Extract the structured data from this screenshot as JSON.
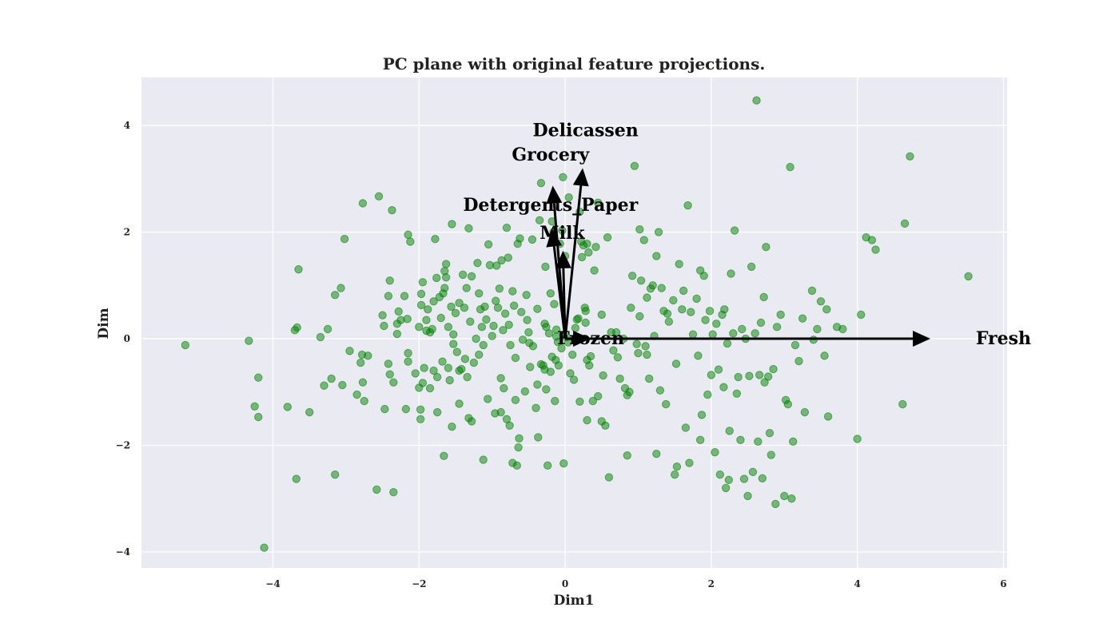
{
  "chart_data": {
    "type": "scatter",
    "title": "PC plane with original feature projections.",
    "xlabel": "Dim1",
    "ylabel": "Dim",
    "xlim": [
      -5.8,
      6.05
    ],
    "ylim": [
      -4.3,
      4.9
    ],
    "xticks": [
      -4,
      -2,
      0,
      2,
      4,
      6
    ],
    "yticks": [
      -4,
      -2,
      0,
      2,
      4
    ],
    "xtick_labels": [
      "−4",
      "−2",
      "0",
      "2",
      "4",
      "6"
    ],
    "ytick_labels": [
      "−4",
      "−2",
      "0",
      "2",
      "4"
    ],
    "grid": true,
    "colors": {
      "background": "#eaeaf2",
      "grid": "#ffffff",
      "points": "#008000",
      "arrows": "#000000"
    },
    "vectors": [
      {
        "name": "Fresh",
        "x": 5.0,
        "y": 0.0,
        "label_x": 6.0,
        "label_y": 0.0
      },
      {
        "name": "Frozen",
        "x": 0.35,
        "y": 0.0,
        "label_x": 0.35,
        "label_y": 0.0
      },
      {
        "name": "Milk",
        "x": -0.03,
        "y": 1.65,
        "label_x": -0.04,
        "label_y": 1.98
      },
      {
        "name": "Detergents_Paper",
        "x": -0.18,
        "y": 2.06,
        "label_x": -0.2,
        "label_y": 2.5
      },
      {
        "name": "Grocery",
        "x": -0.17,
        "y": 2.87,
        "label_x": -0.2,
        "label_y": 3.45
      },
      {
        "name": "Delicassen",
        "x": 0.24,
        "y": 3.2,
        "label_x": 0.28,
        "label_y": 3.9
      }
    ],
    "points": [
      [
        -5.2,
        -0.12
      ],
      [
        -4.33,
        -0.04
      ],
      [
        -4.2,
        -0.73
      ],
      [
        -4.25,
        -1.27
      ],
      [
        -4.2,
        -1.47
      ],
      [
        -4.12,
        -3.92
      ],
      [
        -3.8,
        -1.28
      ],
      [
        -3.7,
        0.16
      ],
      [
        -3.67,
        0.21
      ],
      [
        -3.65,
        1.3
      ],
      [
        -3.68,
        -2.63
      ],
      [
        -3.5,
        -1.38
      ],
      [
        -3.35,
        0.03
      ],
      [
        -3.3,
        -0.88
      ],
      [
        -3.25,
        0.18
      ],
      [
        -3.2,
        -0.75
      ],
      [
        -3.15,
        0.82
      ],
      [
        -3.15,
        -2.55
      ],
      [
        -3.07,
        0.95
      ],
      [
        -3.05,
        -0.87
      ],
      [
        -3.02,
        1.87
      ],
      [
        -2.95,
        -0.23
      ],
      [
        -2.85,
        -1.05
      ],
      [
        -2.8,
        -0.45
      ],
      [
        -2.78,
        -0.3
      ],
      [
        -2.77,
        2.54
      ],
      [
        -2.77,
        -0.82
      ],
      [
        -2.75,
        -1.17
      ],
      [
        -2.7,
        -0.32
      ],
      [
        -2.58,
        -2.83
      ],
      [
        -2.55,
        2.67
      ],
      [
        -2.5,
        0.44
      ],
      [
        -2.48,
        0.24
      ],
      [
        -2.47,
        -1.32
      ],
      [
        -2.42,
        -0.47
      ],
      [
        -2.42,
        0.8
      ],
      [
        -2.4,
        1.09
      ],
      [
        -2.4,
        -0.67
      ],
      [
        -2.37,
        2.41
      ],
      [
        -2.35,
        -2.88
      ],
      [
        -2.35,
        -0.82
      ],
      [
        -2.3,
        0.28
      ],
      [
        -2.3,
        0.09
      ],
      [
        -2.28,
        0.51
      ],
      [
        -2.25,
        0.35
      ],
      [
        -2.2,
        0.8
      ],
      [
        -2.18,
        -1.32
      ],
      [
        -2.16,
        0.37
      ],
      [
        -2.15,
        -0.43
      ],
      [
        -2.15,
        -0.27
      ],
      [
        -2.15,
        1.95
      ],
      [
        -2.12,
        1.82
      ],
      [
        -2.05,
        -0.65
      ],
      [
        -2.0,
        0.22
      ],
      [
        -2.0,
        -0.92
      ],
      [
        -1.98,
        -1.33
      ],
      [
        -1.98,
        -1.51
      ],
      [
        -1.97,
        0.63
      ],
      [
        -1.97,
        0.84
      ],
      [
        -1.95,
        -0.83
      ],
      [
        -1.95,
        1.06
      ],
      [
        -1.93,
        -0.55
      ],
      [
        -1.9,
        0.35
      ],
      [
        -1.9,
        0.15
      ],
      [
        -1.88,
        0.55
      ],
      [
        -1.85,
        0.12
      ],
      [
        -1.85,
        -0.93
      ],
      [
        -1.82,
        0.18
      ],
      [
        -1.8,
        -0.6
      ],
      [
        -1.8,
        0.7
      ],
      [
        -1.78,
        1.87
      ],
      [
        -1.76,
        1.14
      ],
      [
        -1.75,
        -1.38
      ],
      [
        -1.75,
        -0.72
      ],
      [
        -1.72,
        0.78
      ],
      [
        -1.7,
        0.39
      ],
      [
        -1.68,
        -0.43
      ],
      [
        -1.67,
        0.85
      ],
      [
        -1.66,
        -2.2
      ],
      [
        -1.65,
        0.95
      ],
      [
        -1.65,
        1.27
      ],
      [
        -1.63,
        1.15
      ],
      [
        -1.63,
        1.4
      ],
      [
        -1.6,
        0.22
      ],
      [
        -1.6,
        -0.55
      ],
      [
        -1.58,
        -0.78
      ],
      [
        -1.56,
        0.6
      ],
      [
        -1.55,
        2.15
      ],
      [
        -1.55,
        -1.65
      ],
      [
        -1.53,
        0.08
      ],
      [
        -1.53,
        -0.1
      ],
      [
        -1.5,
        0.48
      ],
      [
        -1.48,
        -0.25
      ],
      [
        -1.45,
        -1.22
      ],
      [
        -1.45,
        -0.6
      ],
      [
        -1.45,
        0.67
      ],
      [
        -1.42,
        -0.57
      ],
      [
        -1.4,
        1.2
      ],
      [
        -1.38,
        0.58
      ],
      [
        -1.37,
        -0.38
      ],
      [
        -1.35,
        0.95
      ],
      [
        -1.34,
        -0.72
      ],
      [
        -1.32,
        2.07
      ],
      [
        -1.32,
        -1.49
      ],
      [
        -1.3,
        0.32
      ],
      [
        -1.28,
        1.17
      ],
      [
        -1.28,
        -1.55
      ],
      [
        -1.25,
        -0.45
      ],
      [
        -1.22,
        0.0
      ],
      [
        -1.2,
        1.42
      ],
      [
        -1.18,
        0.85
      ],
      [
        -1.18,
        -0.3
      ],
      [
        -1.16,
        0.55
      ],
      [
        -1.14,
        0.22
      ],
      [
        -1.12,
        -0.12
      ],
      [
        -1.12,
        -2.27
      ],
      [
        -1.1,
        0.6
      ],
      [
        -1.08,
        0.36
      ],
      [
        -1.06,
        -1.13
      ],
      [
        -1.05,
        1.77
      ],
      [
        -1.03,
        1.38
      ],
      [
        -1.0,
        0.05
      ],
      [
        -0.98,
        0.24
      ],
      [
        -0.96,
        -1.4
      ],
      [
        -0.95,
        0.71
      ],
      [
        -0.94,
        1.37
      ],
      [
        -0.92,
        0.58
      ],
      [
        -0.9,
        0.94
      ],
      [
        -0.88,
        -0.74
      ],
      [
        -0.88,
        -1.38
      ],
      [
        -0.87,
        1.47
      ],
      [
        -0.85,
        0.16
      ],
      [
        -0.84,
        -0.93
      ],
      [
        -0.82,
        0.47
      ],
      [
        -0.8,
        -1.51
      ],
      [
        -0.8,
        2.08
      ],
      [
        -0.78,
        1.52
      ],
      [
        -0.77,
        0.26
      ],
      [
        -0.76,
        -1.63
      ],
      [
        -0.75,
        -0.12
      ],
      [
        -0.72,
        -2.33
      ],
      [
        -0.72,
        0.89
      ],
      [
        -0.7,
        0.62
      ],
      [
        -0.68,
        -0.36
      ],
      [
        -0.68,
        -1.15
      ],
      [
        -0.66,
        -2.38
      ],
      [
        -0.65,
        1.78
      ],
      [
        -0.64,
        -2.04
      ],
      [
        -0.63,
        -1.87
      ],
      [
        -0.62,
        1.88
      ],
      [
        -0.6,
        0.5
      ],
      [
        -0.58,
        -0.02
      ],
      [
        -0.55,
        -0.99
      ],
      [
        -0.53,
        0.82
      ],
      [
        -0.52,
        0.35
      ],
      [
        -0.5,
        0.12
      ],
      [
        -0.49,
        -0.08
      ],
      [
        -0.48,
        -0.53
      ],
      [
        -0.45,
        1.86
      ],
      [
        -0.44,
        -0.14
      ],
      [
        -0.4,
        -1.3
      ],
      [
        -0.38,
        -0.86
      ],
      [
        -0.38,
        0.56
      ],
      [
        -0.37,
        -1.85
      ],
      [
        -0.35,
        2.22
      ],
      [
        -0.33,
        -0.48
      ],
      [
        -0.33,
        2.92
      ],
      [
        -0.3,
        -0.5
      ],
      [
        -0.28,
        0.28
      ],
      [
        -0.28,
        -0.58
      ],
      [
        -0.27,
        1.35
      ],
      [
        -0.26,
        -0.95
      ],
      [
        -0.26,
        0.22
      ],
      [
        -0.24,
        -2.38
      ],
      [
        -0.22,
        0.1
      ],
      [
        -0.2,
        -0.62
      ],
      [
        -0.2,
        0.85
      ],
      [
        -0.18,
        2.2
      ],
      [
        -0.18,
        -0.34
      ],
      [
        -0.16,
        2.0
      ],
      [
        -0.15,
        0.65
      ],
      [
        -0.14,
        -1.17
      ],
      [
        -0.13,
        -0.4
      ],
      [
        -0.12,
        0.17
      ],
      [
        -0.12,
        0.04
      ],
      [
        -0.1,
        -0.06
      ],
      [
        -0.09,
        -0.5
      ],
      [
        -0.07,
        1.78
      ],
      [
        -0.05,
        -0.18
      ],
      [
        -0.04,
        2.03
      ],
      [
        -0.03,
        3.03
      ],
      [
        -0.02,
        -2.34
      ],
      [
        0.0,
        1.55
      ],
      [
        0.02,
        0.03
      ],
      [
        0.04,
        -0.07
      ],
      [
        0.05,
        2.65
      ],
      [
        0.07,
        -0.65
      ],
      [
        0.1,
        -0.3
      ],
      [
        0.12,
        -0.77
      ],
      [
        0.14,
        0.2
      ],
      [
        0.16,
        0.36
      ],
      [
        0.18,
        0.38
      ],
      [
        0.2,
        2.38
      ],
      [
        0.2,
        -1.18
      ],
      [
        0.22,
        1.82
      ],
      [
        0.23,
        1.53
      ],
      [
        0.25,
        1.75
      ],
      [
        0.27,
        0.58
      ],
      [
        0.28,
        0.52
      ],
      [
        0.28,
        0.3
      ],
      [
        0.3,
        1.78
      ],
      [
        0.3,
        -1.53
      ],
      [
        0.3,
        -0.4
      ],
      [
        0.32,
        1.62
      ],
      [
        0.33,
        -0.5
      ],
      [
        0.35,
        -0.33
      ],
      [
        0.38,
        -1.17
      ],
      [
        0.4,
        1.28
      ],
      [
        0.42,
        1.72
      ],
      [
        0.45,
        2.55
      ],
      [
        0.45,
        -1.08
      ],
      [
        0.5,
        -1.55
      ],
      [
        0.5,
        0.45
      ],
      [
        0.52,
        -0.69
      ],
      [
        0.55,
        -1.63
      ],
      [
        0.58,
        1.9
      ],
      [
        0.6,
        -2.6
      ],
      [
        0.63,
        0.12
      ],
      [
        0.66,
        -0.22
      ],
      [
        0.7,
        0.12
      ],
      [
        0.72,
        -0.35
      ],
      [
        0.75,
        -0.75
      ],
      [
        0.8,
        0.0
      ],
      [
        0.82,
        -0.93
      ],
      [
        0.85,
        -2.19
      ],
      [
        0.85,
        -1.06
      ],
      [
        0.88,
        -1.0
      ],
      [
        0.9,
        0.58
      ],
      [
        0.92,
        1.18
      ],
      [
        0.95,
        3.24
      ],
      [
        0.98,
        -0.1
      ],
      [
        1.0,
        -0.27
      ],
      [
        1.02,
        0.42
      ],
      [
        1.02,
        2.05
      ],
      [
        1.04,
        1.09
      ],
      [
        1.08,
        1.85
      ],
      [
        1.1,
        -0.14
      ],
      [
        1.12,
        -0.3
      ],
      [
        1.12,
        0.77
      ],
      [
        1.15,
        -0.75
      ],
      [
        1.17,
        0.94
      ],
      [
        1.2,
        1.0
      ],
      [
        1.22,
        0.05
      ],
      [
        1.25,
        1.55
      ],
      [
        1.25,
        -2.16
      ],
      [
        1.28,
        2.0
      ],
      [
        1.3,
        -0.97
      ],
      [
        1.32,
        0.95
      ],
      [
        1.35,
        0.52
      ],
      [
        1.38,
        -1.23
      ],
      [
        1.4,
        0.47
      ],
      [
        1.42,
        0.32
      ],
      [
        1.48,
        0.72
      ],
      [
        1.5,
        -2.55
      ],
      [
        1.52,
        -0.47
      ],
      [
        1.53,
        -2.4
      ],
      [
        1.56,
        1.4
      ],
      [
        1.6,
        0.55
      ],
      [
        1.62,
        0.9
      ],
      [
        1.65,
        -1.67
      ],
      [
        1.68,
        2.5
      ],
      [
        1.7,
        -2.33
      ],
      [
        1.72,
        0.5
      ],
      [
        1.75,
        0.08
      ],
      [
        1.8,
        0.75
      ],
      [
        1.82,
        -0.32
      ],
      [
        1.85,
        -1.9
      ],
      [
        1.85,
        1.28
      ],
      [
        1.87,
        -1.43
      ],
      [
        1.9,
        1.18
      ],
      [
        1.92,
        0.35
      ],
      [
        1.95,
        -1.05
      ],
      [
        1.98,
        0.52
      ],
      [
        2.0,
        -0.68
      ],
      [
        2.02,
        0.08
      ],
      [
        2.05,
        -2.13
      ],
      [
        2.07,
        0.28
      ],
      [
        2.1,
        -0.58
      ],
      [
        2.12,
        -2.55
      ],
      [
        2.15,
        0.45
      ],
      [
        2.17,
        -0.91
      ],
      [
        2.18,
        0.55
      ],
      [
        2.2,
        -2.8
      ],
      [
        2.22,
        -0.09
      ],
      [
        2.24,
        -2.65
      ],
      [
        2.25,
        -1.73
      ],
      [
        2.27,
        1.22
      ],
      [
        2.3,
        0.1
      ],
      [
        2.32,
        2.03
      ],
      [
        2.35,
        -1.03
      ],
      [
        2.37,
        -0.72
      ],
      [
        2.4,
        -1.9
      ],
      [
        2.42,
        0.18
      ],
      [
        2.45,
        -2.63
      ],
      [
        2.47,
        0.0
      ],
      [
        2.5,
        -2.95
      ],
      [
        2.52,
        -0.7
      ],
      [
        2.55,
        1.35
      ],
      [
        2.57,
        -2.5
      ],
      [
        2.6,
        0.1
      ],
      [
        2.62,
        4.47
      ],
      [
        2.64,
        -1.93
      ],
      [
        2.66,
        -0.68
      ],
      [
        2.68,
        0.3
      ],
      [
        2.7,
        -2.62
      ],
      [
        2.72,
        0.78
      ],
      [
        2.73,
        -0.82
      ],
      [
        2.75,
        1.72
      ],
      [
        2.78,
        -0.71
      ],
      [
        2.8,
        -1.77
      ],
      [
        2.82,
        -2.18
      ],
      [
        2.85,
        -0.57
      ],
      [
        2.88,
        -3.1
      ],
      [
        2.9,
        0.22
      ],
      [
        2.95,
        0.45
      ],
      [
        3.0,
        -2.95
      ],
      [
        3.02,
        -1.15
      ],
      [
        3.05,
        -1.23
      ],
      [
        3.08,
        3.22
      ],
      [
        3.1,
        -3.0
      ],
      [
        3.12,
        -1.93
      ],
      [
        3.15,
        -0.12
      ],
      [
        3.2,
        -0.42
      ],
      [
        3.25,
        0.38
      ],
      [
        3.28,
        -1.38
      ],
      [
        3.38,
        0.9
      ],
      [
        3.4,
        -0.02
      ],
      [
        3.45,
        0.18
      ],
      [
        3.5,
        0.7
      ],
      [
        3.55,
        -0.32
      ],
      [
        3.58,
        0.55
      ],
      [
        3.6,
        -1.46
      ],
      [
        3.72,
        0.22
      ],
      [
        3.8,
        0.18
      ],
      [
        4.0,
        -1.88
      ],
      [
        4.05,
        0.45
      ],
      [
        4.12,
        1.9
      ],
      [
        4.2,
        1.85
      ],
      [
        4.25,
        1.67
      ],
      [
        4.62,
        -1.23
      ],
      [
        4.65,
        2.16
      ],
      [
        4.72,
        3.42
      ],
      [
        5.52,
        1.17
      ]
    ]
  }
}
